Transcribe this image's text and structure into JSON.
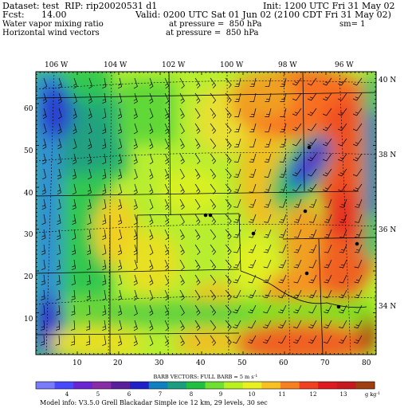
{
  "header": {
    "dataset": "Dataset: test  RIP: rip20020531 d1",
    "init": "Init: 1200 UTC Fri 31 May 02",
    "fcst_label": "Fcst:",
    "fcst_value": "14.00",
    "valid": "Valid: 0200 UTC Sat 01 Jun 02 (2100 CDT Fri 31 May 02)",
    "field1": "Water vapor mixing ratio",
    "field1_level": "at pressure =  850 hPa",
    "smooth": "sm= 1",
    "field2": "Horizontal wind vectors",
    "field2_level": "at pressure =  850 hPa"
  },
  "map": {
    "longitude_labels": [
      "106 W",
      "104 W",
      "102 W",
      "100 W",
      "98 W",
      "96 W"
    ],
    "latitude_labels": [
      "40 N",
      "38 N",
      "36 N",
      "34 N"
    ],
    "x_ticks": [
      "10",
      "20",
      "30",
      "40",
      "50",
      "60",
      "70",
      "80"
    ],
    "y_ticks": [
      "10",
      "20",
      "30",
      "40",
      "50",
      "60"
    ]
  },
  "colorbar": {
    "title": "BARB VECTORS:  FULL BARB = 5 m s",
    "title_sup": "-1",
    "labels": [
      "4",
      "5",
      "6",
      "7",
      "8",
      "9",
      "10",
      "11",
      "12",
      "13"
    ],
    "units": "g kg",
    "units_sup": "-1",
    "colors": [
      "#7a7aff",
      "#4848ff",
      "#6a24d4",
      "#8a2ca8",
      "#5a1f9c",
      "#2020c8",
      "#1080c0",
      "#1aa080",
      "#20c040",
      "#70e030",
      "#b8f020",
      "#e8f020",
      "#f8c020",
      "#f88020",
      "#f04020",
      "#e01820",
      "#c81820",
      "#a04010"
    ]
  },
  "footer": {
    "model_info": "Model info: V3.5.0  Grell    Blackadar  Simple ice    12 km,  29 levels,   30 sec"
  }
}
